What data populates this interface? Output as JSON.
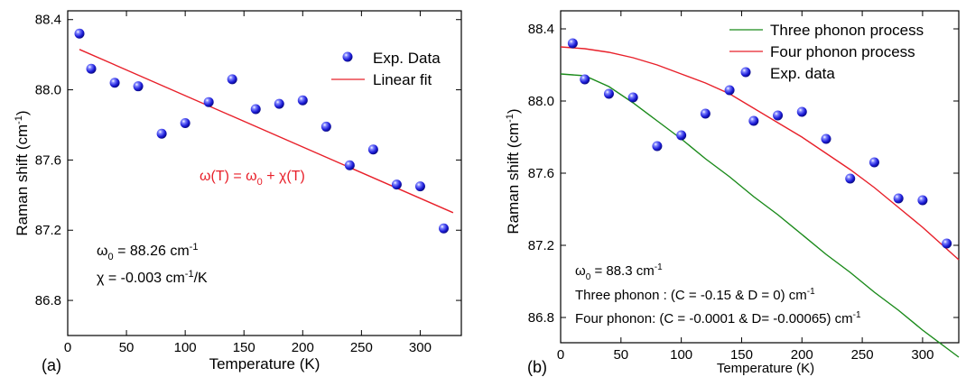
{
  "chart_data": [
    {
      "panel_label": "(a)",
      "type": "scatter",
      "xlabel": "Temperature (K)",
      "ylabel": "Raman shift (cm",
      "ylabel_sup": "-1",
      "ylabel_close": ")",
      "xlim": [
        0,
        335
      ],
      "ylim": [
        86.6,
        88.45
      ],
      "xticks": [
        0,
        50,
        100,
        150,
        200,
        250,
        300
      ],
      "xtick_labels": [
        "0",
        "50",
        "100",
        "150",
        "200",
        "250",
        "300"
      ],
      "yticks": [
        86.8,
        87.2,
        87.6,
        88.0,
        88.4
      ],
      "ytick_labels": [
        "86.8",
        "87.2",
        "87.6",
        "88.0",
        "88.4"
      ],
      "points": {
        "x": [
          10,
          20,
          40,
          60,
          80,
          100,
          120,
          140,
          160,
          180,
          200,
          220,
          240,
          260,
          280,
          300,
          320
        ],
        "y": [
          88.32,
          88.12,
          88.04,
          88.02,
          87.75,
          87.81,
          87.93,
          88.06,
          87.89,
          87.92,
          87.94,
          87.79,
          87.57,
          87.66,
          87.46,
          87.45,
          87.21
        ],
        "color": "#1f1fe0"
      },
      "series": [
        {
          "name": "Linear fit",
          "x": [
            10,
            328
          ],
          "y": [
            88.23,
            87.3
          ],
          "color": "#e8202a"
        }
      ],
      "legend": {
        "placement": "top-right",
        "points_label": "Exp. Data",
        "line_label": "Linear fit"
      },
      "formula": {
        "a": "ω(T) = ω",
        "sub1": "0",
        "b": " + χ(T)",
        "color": "#e8202a"
      },
      "annotations": [
        {
          "a": "ω",
          "sub": "0",
          "b": " = 88.26 cm",
          "sup": "-1",
          "c": ""
        },
        {
          "a": "χ  =  -0.003 cm",
          "sub": "",
          "b": "",
          "sup": "-1",
          "c": "/K"
        }
      ]
    },
    {
      "panel_label": "(b)",
      "type": "scatter",
      "xlabel": "Temperature (K)",
      "ylabel": "Raman shift (cm",
      "ylabel_sup": "-1",
      "ylabel_close": ")",
      "xlim": [
        0,
        330
      ],
      "ylim": [
        86.66,
        88.5
      ],
      "xticks": [
        0,
        50,
        100,
        150,
        200,
        250,
        300
      ],
      "xtick_labels": [
        "0",
        "50",
        "100",
        "150",
        "200",
        "250",
        "300"
      ],
      "yticks": [
        86.8,
        87.2,
        87.6,
        88.0,
        88.4
      ],
      "ytick_labels": [
        "86.8",
        "87.2",
        "87.6",
        "88.0",
        "88.4"
      ],
      "points": {
        "x": [
          10,
          20,
          40,
          60,
          80,
          100,
          120,
          140,
          160,
          180,
          200,
          220,
          240,
          260,
          280,
          300,
          320
        ],
        "y": [
          88.32,
          88.12,
          88.04,
          88.02,
          87.75,
          87.81,
          87.93,
          88.06,
          87.89,
          87.92,
          87.94,
          87.79,
          87.57,
          87.66,
          87.46,
          87.45,
          87.21
        ],
        "color": "#1f1fe0"
      },
      "series": [
        {
          "name": "Three phonon process",
          "x": [
            0,
            20,
            40,
            60,
            80,
            100,
            120,
            140,
            160,
            180,
            200,
            220,
            240,
            260,
            280,
            300,
            320,
            330
          ],
          "y": [
            88.15,
            88.14,
            88.08,
            87.99,
            87.89,
            87.79,
            87.68,
            87.58,
            87.47,
            87.37,
            87.26,
            87.15,
            87.05,
            86.94,
            86.84,
            86.73,
            86.63,
            86.58
          ],
          "color": "#1a8a1a"
        },
        {
          "name": "Four phonon process",
          "x": [
            0,
            20,
            40,
            60,
            80,
            100,
            120,
            140,
            160,
            180,
            200,
            220,
            240,
            260,
            280,
            300,
            320,
            330
          ],
          "y": [
            88.3,
            88.29,
            88.27,
            88.24,
            88.2,
            88.15,
            88.1,
            88.04,
            87.96,
            87.88,
            87.8,
            87.71,
            87.62,
            87.52,
            87.41,
            87.3,
            87.18,
            87.12
          ],
          "color": "#e8202a"
        }
      ],
      "legend": {
        "placement": "top-right",
        "points_label": "Exp. data"
      },
      "annotations": [
        {
          "a": "ω",
          "sub": "0",
          "b": " = 88.3 cm",
          "sup": "-1",
          "c": ""
        },
        {
          "a": "Three phonon : (C = -0.15 & D = 0) cm",
          "sub": "",
          "b": "",
          "sup": "-1",
          "c": ""
        },
        {
          "a": "Four phonon: (C = -0.0001 & D= -0.00065) cm",
          "sub": "",
          "b": "",
          "sup": "-1",
          "c": ""
        }
      ]
    }
  ]
}
